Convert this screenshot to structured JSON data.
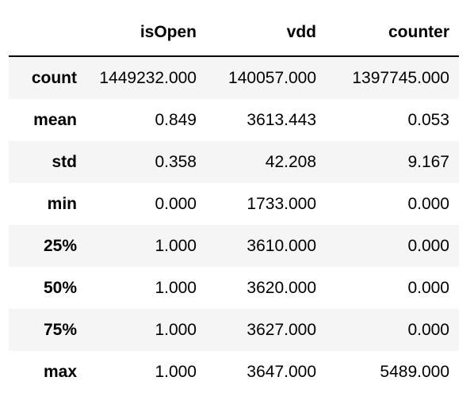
{
  "table": {
    "index_header": "",
    "columns": [
      "isOpen",
      "vdd",
      "counter"
    ],
    "rows": [
      {
        "label": "count",
        "values": [
          "1449232.000",
          "140057.000",
          "1397745.000"
        ]
      },
      {
        "label": "mean",
        "values": [
          "0.849",
          "3613.443",
          "0.053"
        ]
      },
      {
        "label": "std",
        "values": [
          "0.358",
          "42.208",
          "9.167"
        ]
      },
      {
        "label": "min",
        "values": [
          "0.000",
          "1733.000",
          "0.000"
        ]
      },
      {
        "label": "25%",
        "values": [
          "1.000",
          "3610.000",
          "0.000"
        ]
      },
      {
        "label": "50%",
        "values": [
          "1.000",
          "3620.000",
          "0.000"
        ]
      },
      {
        "label": "75%",
        "values": [
          "1.000",
          "3627.000",
          "0.000"
        ]
      },
      {
        "label": "max",
        "values": [
          "1.000",
          "3647.000",
          "5489.000"
        ]
      }
    ]
  }
}
